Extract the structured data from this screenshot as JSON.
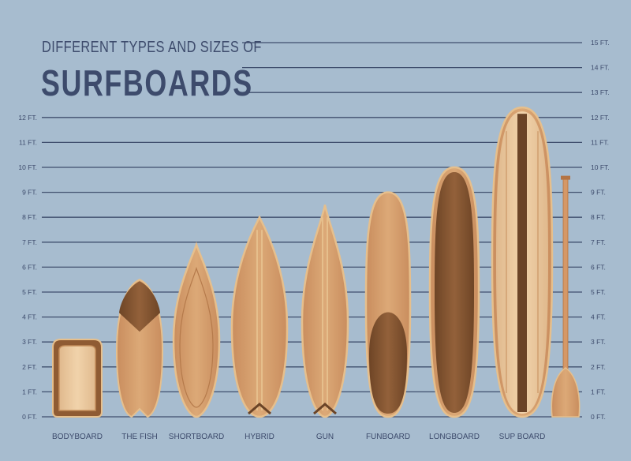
{
  "title": {
    "line1": "DIFFERENT TYPES AND SIZES OF",
    "line2": "SURFBOARDS"
  },
  "scale": {
    "unit": "FT.",
    "left_ticks": [
      "0 FT.",
      "1 FT.",
      "2 FT.",
      "3 FT.",
      "4 FT.",
      "5 FT.",
      "6 FT.",
      "7 FT.",
      "8 FT.",
      "9 FT.",
      "10 FT.",
      "11 FT.",
      "12 FT."
    ],
    "right_ticks": [
      "0 FT.",
      "1 FT.",
      "2 FT.",
      "3 FT.",
      "4 FT.",
      "5 FT.",
      "6 FT.",
      "7 FT.",
      "8 FT.",
      "9 FT.",
      "10 FT.",
      "11 FT.",
      "12 FT.",
      "13 FT.",
      "14 FT.",
      "15 FT."
    ]
  },
  "colors": {
    "background": "#a7bccf",
    "grid_line": "#3f4e6d",
    "label": "#3d4b6c",
    "board_rim": "#e6bf8c",
    "board_light": "#d9a273",
    "board_dark": "#8a5a35",
    "board_darker": "#6b4427"
  },
  "boards": [
    {
      "label": "BODYBOARD",
      "length_ft": 3.1,
      "shape": "bodyboard"
    },
    {
      "label": "THE FISH",
      "length_ft": 5.5,
      "shape": "fish"
    },
    {
      "label": "SHORTBOARD",
      "length_ft": 6.9,
      "shape": "shortboard"
    },
    {
      "label": "HYBRID",
      "length_ft": 8.0,
      "shape": "hybrid"
    },
    {
      "label": "GUN",
      "length_ft": 8.5,
      "shape": "gun"
    },
    {
      "label": "FUNBOARD",
      "length_ft": 9.0,
      "shape": "funboard"
    },
    {
      "label": "LONGBOARD",
      "length_ft": 10.0,
      "shape": "longboard"
    },
    {
      "label": "SUP BOARD",
      "length_ft": 12.4,
      "shape": "sup"
    }
  ],
  "paddle": {
    "length_ft": 9.6
  }
}
